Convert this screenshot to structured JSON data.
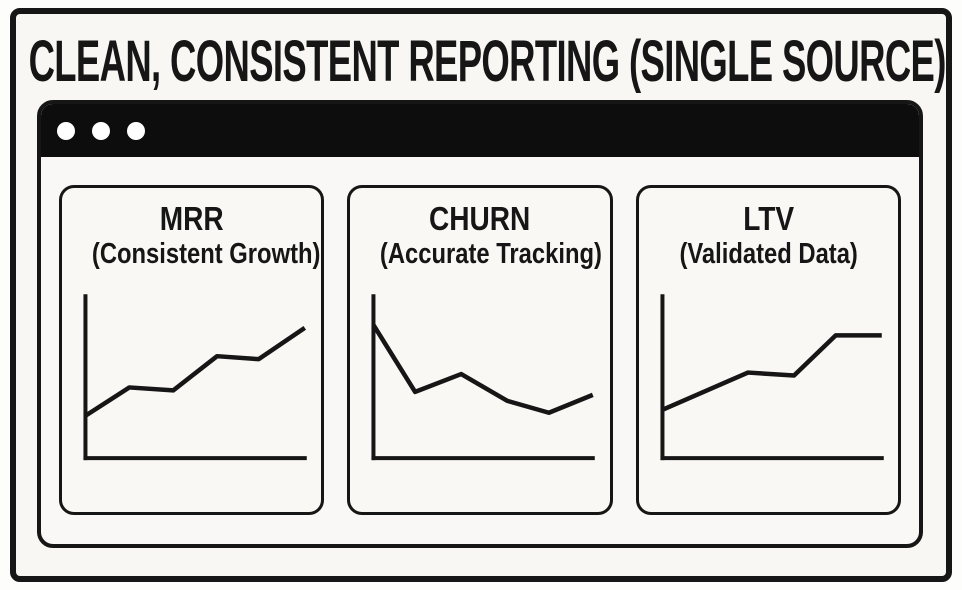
{
  "title": "CLEAN, CONSISTENT REPORTING (SINGLE SOURCE)",
  "window": {
    "control_dots": [
      "window-dot",
      "window-dot",
      "window-dot"
    ]
  },
  "colors": {
    "ink": "#161616",
    "paper": "#f8f7f4",
    "window_bg": "#f9f8f6",
    "titlebar": "#0d0d0d",
    "card_bg": "#f9f8f5",
    "dot": "#ffffff"
  },
  "chart_data": [
    {
      "type": "line",
      "title": "MRR",
      "subtitle": "(Consistent Growth)",
      "x": [
        0,
        20,
        40,
        60,
        79,
        100
      ],
      "values": [
        26,
        45,
        43,
        66,
        64,
        85
      ],
      "xlabel": "",
      "ylabel": "",
      "ylim": [
        0,
        100
      ],
      "grid": false,
      "legend": "none",
      "trend": "upward"
    },
    {
      "type": "line",
      "title": "CHURN",
      "subtitle": "(Accurate Tracking)",
      "x": [
        0,
        19,
        40,
        61,
        80,
        100
      ],
      "values": [
        87,
        42,
        54,
        36,
        28,
        40
      ],
      "xlabel": "",
      "ylabel": "",
      "ylim": [
        0,
        100
      ],
      "grid": false,
      "legend": "none",
      "trend": "downward"
    },
    {
      "type": "line",
      "title": "LTV",
      "subtitle": "(Validated Data)",
      "x": [
        0,
        39,
        60,
        79,
        100
      ],
      "values": [
        30,
        55,
        53,
        80,
        80
      ],
      "xlabel": "",
      "ylabel": "",
      "ylim": [
        0,
        100
      ],
      "grid": false,
      "legend": "none",
      "trend": "upward"
    }
  ]
}
